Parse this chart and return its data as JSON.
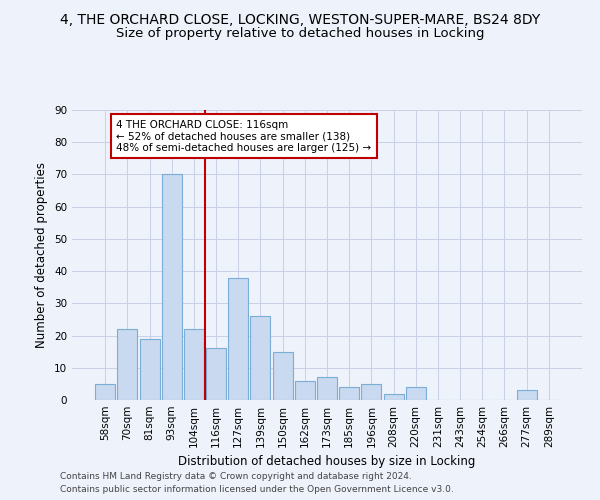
{
  "title": "4, THE ORCHARD CLOSE, LOCKING, WESTON-SUPER-MARE, BS24 8DY",
  "subtitle": "Size of property relative to detached houses in Locking",
  "xlabel": "Distribution of detached houses by size in Locking",
  "ylabel": "Number of detached properties",
  "categories": [
    "58sqm",
    "70sqm",
    "81sqm",
    "93sqm",
    "104sqm",
    "116sqm",
    "127sqm",
    "139sqm",
    "150sqm",
    "162sqm",
    "173sqm",
    "185sqm",
    "196sqm",
    "208sqm",
    "220sqm",
    "231sqm",
    "243sqm",
    "254sqm",
    "266sqm",
    "277sqm",
    "289sqm"
  ],
  "values": [
    5,
    22,
    19,
    70,
    22,
    16,
    38,
    26,
    15,
    6,
    7,
    4,
    5,
    2,
    4,
    0,
    0,
    0,
    0,
    3,
    0
  ],
  "bar_color": "#c9d9f0",
  "bar_edge_color": "#7aaed6",
  "highlight_index": 5,
  "highlight_color": "#c00000",
  "ylim": [
    0,
    90
  ],
  "yticks": [
    0,
    10,
    20,
    30,
    40,
    50,
    60,
    70,
    80,
    90
  ],
  "annotation_text": "4 THE ORCHARD CLOSE: 116sqm\n← 52% of detached houses are smaller (138)\n48% of semi-detached houses are larger (125) →",
  "footer_line1": "Contains HM Land Registry data © Crown copyright and database right 2024.",
  "footer_line2": "Contains public sector information licensed under the Open Government Licence v3.0.",
  "background_color": "#eef2fb",
  "grid_color": "#c8d0e8",
  "title_fontsize": 10,
  "subtitle_fontsize": 9.5,
  "axis_label_fontsize": 8.5,
  "tick_fontsize": 7.5,
  "footer_fontsize": 6.5,
  "annotation_fontsize": 7.5,
  "annotation_box_color": "#ffffff",
  "annotation_box_edge_color": "#c00000"
}
